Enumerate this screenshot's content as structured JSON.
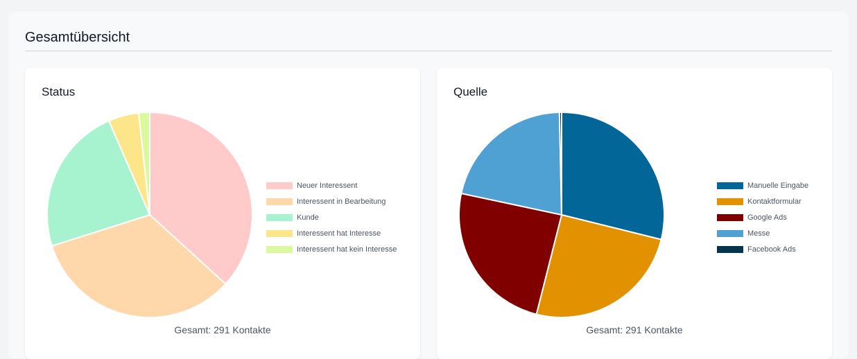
{
  "page": {
    "title": "Gesamtübersicht"
  },
  "chart_data": [
    {
      "type": "pie",
      "title": "Status",
      "categories": [
        "Neuer Interessent",
        "Interessent in Bearbeitung",
        "Kunde",
        "Interessent hat Interesse",
        "Interessent hat kein Interesse"
      ],
      "values": [
        107,
        97,
        68,
        14,
        5
      ],
      "colors": [
        "#fecaca",
        "#fed7aa",
        "#a7f3d0",
        "#fde68a",
        "#d9f99d"
      ],
      "legend": "right",
      "total_label": "Gesamt: 291 Kontakte"
    },
    {
      "type": "pie",
      "title": "Quelle",
      "categories": [
        "Manuelle Eingabe",
        "Kontaktformular",
        "Google Ads",
        "Messe",
        "Facebook Ads"
      ],
      "values": [
        84,
        73,
        71,
        62,
        1
      ],
      "colors": [
        "#036699",
        "#e29100",
        "#800000",
        "#4fa1d3",
        "#03344d"
      ],
      "legend": "right",
      "total_label": "Gesamt: 291 Kontakte"
    }
  ]
}
